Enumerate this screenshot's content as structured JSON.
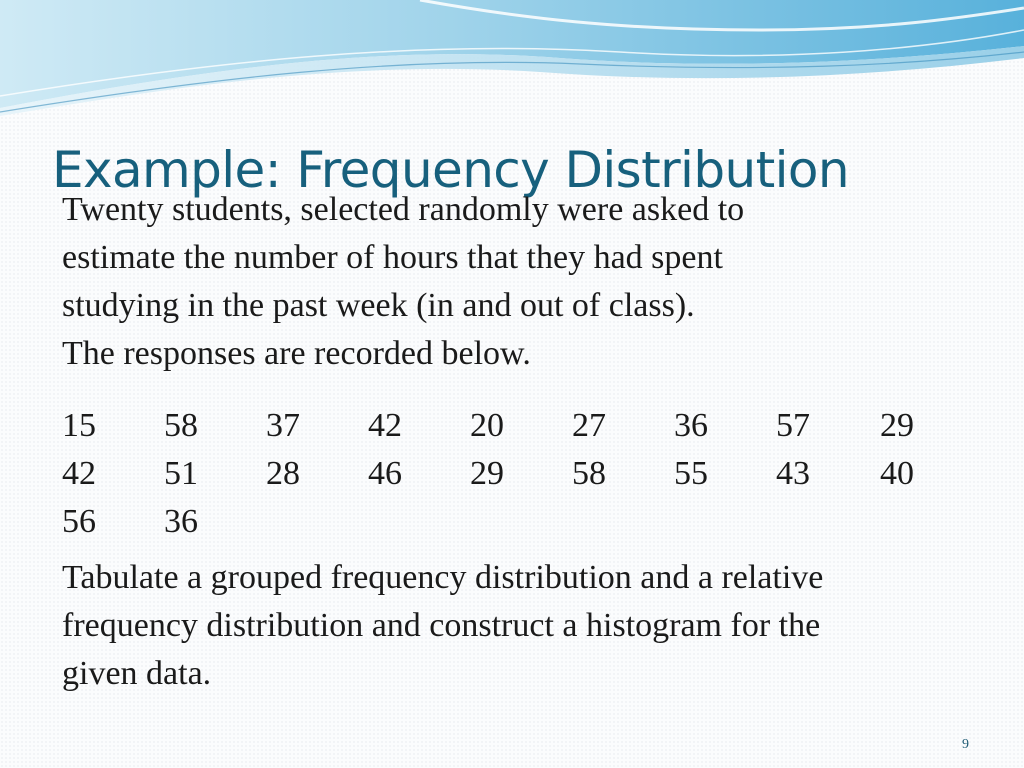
{
  "slide": {
    "title": "Example: Frequency Distribution",
    "intro_lines": [
      "Twenty students, selected randomly were asked to",
      "estimate the number of hours that they had spent",
      "studying in the past week (in and out of class).",
      "The responses are recorded below."
    ],
    "data_rows": [
      [
        "15",
        "58",
        "37",
        "42",
        "20",
        "27",
        "36",
        "57",
        "29"
      ],
      [
        "42",
        "51",
        "28",
        "46",
        "29",
        "58",
        "55",
        "43",
        "40"
      ],
      [
        "56",
        "36"
      ]
    ],
    "task_lines": [
      "Tabulate a grouped frequency distribution and a relative",
      "frequency distribution and construct a histogram for the",
      "given data."
    ],
    "page_number": "9"
  },
  "colors": {
    "title": "#17607d",
    "wave_light": "#bfe3f1",
    "wave_mid": "#7cc2e0",
    "wave_dark": "#3b96c6"
  }
}
